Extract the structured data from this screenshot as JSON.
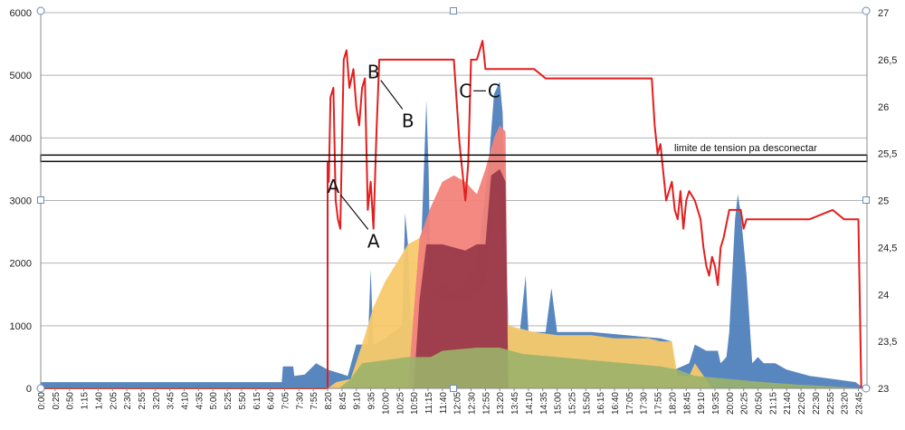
{
  "chart_data": {
    "type": "area",
    "title": "",
    "xlabel": "",
    "ylabel": "",
    "y_left": {
      "range": [
        0,
        6000
      ],
      "ticks": [
        0,
        1000,
        2000,
        3000,
        4000,
        5000,
        6000
      ]
    },
    "y_right": {
      "range": [
        23,
        27
      ],
      "ticks": [
        "23",
        "23,5",
        "24",
        "24,5",
        "25",
        "25,5",
        "26",
        "26,5",
        "27"
      ],
      "tick_values": [
        23,
        23.5,
        24,
        24.5,
        25,
        25.5,
        26,
        26.5,
        27
      ]
    },
    "grid": true,
    "x_labels": [
      "0:00",
      "0:25",
      "0:50",
      "1:15",
      "1:40",
      "2:05",
      "2:30",
      "2:55",
      "3:20",
      "3:45",
      "4:10",
      "4:35",
      "5:00",
      "5:25",
      "5:50",
      "6:15",
      "6:40",
      "7:05",
      "7:30",
      "7:55",
      "8:20",
      "8:45",
      "9:10",
      "9:35",
      "10:00",
      "10:25",
      "10:50",
      "11:15",
      "11:40",
      "12:05",
      "12:30",
      "12:55",
      "13:20",
      "13:45",
      "14:10",
      "14:35",
      "15:00",
      "15:25",
      "15:50",
      "16:15",
      "16:40",
      "17:05",
      "17:30",
      "17:55",
      "18:20",
      "18:45",
      "19:10",
      "19:35",
      "20:00",
      "20:25",
      "20:50",
      "21:15",
      "21:40",
      "22:05",
      "22:30",
      "22:55",
      "23:20",
      "23:45"
    ],
    "series": [
      {
        "role": "left-axis",
        "color": "#4f81bd",
        "points": [
          [
            0,
            100
          ],
          [
            420,
            100
          ],
          [
            422,
            350
          ],
          [
            440,
            350
          ],
          [
            442,
            200
          ],
          [
            460,
            220
          ],
          [
            480,
            400
          ],
          [
            500,
            300
          ],
          [
            535,
            200
          ],
          [
            550,
            700
          ],
          [
            570,
            700
          ],
          [
            575,
            1900
          ],
          [
            580,
            700
          ],
          [
            600,
            800
          ],
          [
            630,
            1000
          ],
          [
            635,
            2800
          ],
          [
            640,
            2300
          ],
          [
            645,
            1000
          ],
          [
            660,
            1500
          ],
          [
            672,
            4600
          ],
          [
            676,
            3500
          ],
          [
            680,
            1500
          ],
          [
            700,
            1700
          ],
          [
            720,
            1500
          ],
          [
            740,
            1700
          ],
          [
            760,
            2000
          ],
          [
            780,
            3500
          ],
          [
            790,
            4700
          ],
          [
            800,
            4900
          ],
          [
            805,
            4400
          ],
          [
            815,
            1000
          ],
          [
            835,
            900
          ],
          [
            845,
            1800
          ],
          [
            850,
            900
          ],
          [
            880,
            900
          ],
          [
            890,
            1600
          ],
          [
            900,
            900
          ],
          [
            960,
            900
          ],
          [
            1020,
            850
          ],
          [
            1080,
            800
          ],
          [
            1100,
            750
          ],
          [
            1105,
            300
          ],
          [
            1130,
            400
          ],
          [
            1140,
            700
          ],
          [
            1160,
            600
          ],
          [
            1180,
            600
          ],
          [
            1185,
            400
          ],
          [
            1195,
            500
          ],
          [
            1200,
            900
          ],
          [
            1210,
            2700
          ],
          [
            1215,
            3100
          ],
          [
            1220,
            2800
          ],
          [
            1230,
            1800
          ],
          [
            1240,
            400
          ],
          [
            1250,
            500
          ],
          [
            1260,
            400
          ],
          [
            1280,
            400
          ],
          [
            1300,
            300
          ],
          [
            1340,
            200
          ],
          [
            1380,
            150
          ],
          [
            1420,
            100
          ],
          [
            1435,
            0
          ]
        ]
      },
      {
        "role": "left-axis",
        "color": "#f7c96a",
        "points": [
          [
            0,
            0
          ],
          [
            500,
            0
          ],
          [
            515,
            100
          ],
          [
            540,
            150
          ],
          [
            560,
            700
          ],
          [
            580,
            1300
          ],
          [
            600,
            1700
          ],
          [
            620,
            2000
          ],
          [
            640,
            2300
          ],
          [
            660,
            2400
          ],
          [
            672,
            2500
          ],
          [
            680,
            1500
          ],
          [
            700,
            1400
          ],
          [
            740,
            1400
          ],
          [
            775,
            1700
          ],
          [
            790,
            3200
          ],
          [
            800,
            3000
          ],
          [
            815,
            1000
          ],
          [
            860,
            900
          ],
          [
            900,
            850
          ],
          [
            960,
            850
          ],
          [
            1000,
            800
          ],
          [
            1060,
            800
          ],
          [
            1080,
            750
          ],
          [
            1100,
            750
          ],
          [
            1110,
            200
          ],
          [
            1130,
            200
          ],
          [
            1140,
            400
          ],
          [
            1170,
            0
          ]
        ]
      },
      {
        "role": "left-axis",
        "color": "#f2837a",
        "points": [
          [
            640,
            0
          ],
          [
            660,
            2400
          ],
          [
            680,
            2900
          ],
          [
            700,
            3300
          ],
          [
            720,
            3400
          ],
          [
            740,
            3300
          ],
          [
            760,
            3100
          ],
          [
            775,
            3500
          ],
          [
            790,
            4000
          ],
          [
            800,
            4200
          ],
          [
            810,
            4100
          ],
          [
            815,
            0
          ]
        ]
      },
      {
        "role": "left-axis",
        "color": "#9a3a4a",
        "points": [
          [
            650,
            0
          ],
          [
            660,
            1400
          ],
          [
            672,
            2300
          ],
          [
            700,
            2300
          ],
          [
            740,
            2200
          ],
          [
            760,
            2300
          ],
          [
            775,
            2300
          ],
          [
            785,
            3400
          ],
          [
            800,
            3500
          ],
          [
            810,
            3300
          ],
          [
            815,
            0
          ]
        ]
      },
      {
        "role": "left-axis",
        "color": "#9bb36a",
        "points": [
          [
            0,
            0
          ],
          [
            520,
            0
          ],
          [
            540,
            150
          ],
          [
            560,
            400
          ],
          [
            600,
            450
          ],
          [
            640,
            500
          ],
          [
            680,
            500
          ],
          [
            700,
            600
          ],
          [
            760,
            650
          ],
          [
            800,
            650
          ],
          [
            840,
            550
          ],
          [
            900,
            500
          ],
          [
            960,
            450
          ],
          [
            1020,
            400
          ],
          [
            1080,
            350
          ],
          [
            1110,
            300
          ],
          [
            1140,
            200
          ],
          [
            1200,
            150
          ],
          [
            1260,
            100
          ],
          [
            1320,
            60
          ],
          [
            1380,
            30
          ],
          [
            1435,
            0
          ]
        ]
      },
      {
        "role": "right-axis",
        "color": "#e31e1e",
        "points": [
          [
            0,
            23
          ],
          [
            500,
            23
          ],
          [
            500,
            25.4
          ],
          [
            502,
            25.2
          ],
          [
            505,
            26.1
          ],
          [
            510,
            26.2
          ],
          [
            514,
            25.0
          ],
          [
            518,
            24.8
          ],
          [
            522,
            24.7
          ],
          [
            528,
            26.5
          ],
          [
            533,
            26.6
          ],
          [
            538,
            26.2
          ],
          [
            545,
            26.4
          ],
          [
            550,
            26.0
          ],
          [
            555,
            25.8
          ],
          [
            560,
            26.2
          ],
          [
            565,
            26.3
          ],
          [
            570,
            24.9
          ],
          [
            575,
            25.2
          ],
          [
            580,
            24.7
          ],
          [
            585,
            25.7
          ],
          [
            590,
            26.5
          ],
          [
            600,
            26.5
          ],
          [
            620,
            26.5
          ],
          [
            640,
            26.5
          ],
          [
            660,
            26.5
          ],
          [
            700,
            26.5
          ],
          [
            720,
            26.5
          ],
          [
            730,
            25.6
          ],
          [
            735,
            25.3
          ],
          [
            740,
            25.0
          ],
          [
            745,
            25.4
          ],
          [
            750,
            26.5
          ],
          [
            760,
            26.5
          ],
          [
            770,
            26.7
          ],
          [
            775,
            26.4
          ],
          [
            780,
            26.4
          ],
          [
            800,
            26.4
          ],
          [
            820,
            26.4
          ],
          [
            840,
            26.4
          ],
          [
            860,
            26.4
          ],
          [
            880,
            26.3
          ],
          [
            900,
            26.3
          ],
          [
            940,
            26.3
          ],
          [
            1000,
            26.3
          ],
          [
            1050,
            26.3
          ],
          [
            1065,
            26.3
          ],
          [
            1070,
            25.8
          ],
          [
            1075,
            25.5
          ],
          [
            1080,
            25.6
          ],
          [
            1085,
            25.3
          ],
          [
            1090,
            25.0
          ],
          [
            1100,
            25.2
          ],
          [
            1105,
            24.9
          ],
          [
            1110,
            24.8
          ],
          [
            1115,
            25.1
          ],
          [
            1120,
            24.7
          ],
          [
            1125,
            25.0
          ],
          [
            1130,
            25.1
          ],
          [
            1140,
            25.0
          ],
          [
            1150,
            24.8
          ],
          [
            1155,
            24.5
          ],
          [
            1160,
            24.3
          ],
          [
            1165,
            24.2
          ],
          [
            1170,
            24.4
          ],
          [
            1175,
            24.3
          ],
          [
            1180,
            24.1
          ],
          [
            1185,
            24.5
          ],
          [
            1190,
            24.6
          ],
          [
            1200,
            24.9
          ],
          [
            1210,
            24.9
          ],
          [
            1220,
            24.9
          ],
          [
            1225,
            24.7
          ],
          [
            1230,
            24.8
          ],
          [
            1240,
            24.8
          ],
          [
            1260,
            24.8
          ],
          [
            1300,
            24.8
          ],
          [
            1340,
            24.8
          ],
          [
            1380,
            24.9
          ],
          [
            1400,
            24.8
          ],
          [
            1420,
            24.8
          ],
          [
            1425,
            24.8
          ],
          [
            1430,
            23.0
          ]
        ]
      }
    ],
    "annotations": {
      "limit_label": "limite de tension pa desconectar",
      "limit_value": 25.45,
      "letters": [
        {
          "text": "A",
          "x": 510,
          "y": 25.08
        },
        {
          "text": "A",
          "x": 580,
          "y": 24.5
        },
        {
          "text": "B",
          "x": 580,
          "y": 26.3
        },
        {
          "text": "B",
          "x": 640,
          "y": 25.78
        },
        {
          "text": "C",
          "x": 740,
          "y": 26.1
        },
        {
          "text": "C",
          "x": 790,
          "y": 26.1
        }
      ]
    }
  }
}
